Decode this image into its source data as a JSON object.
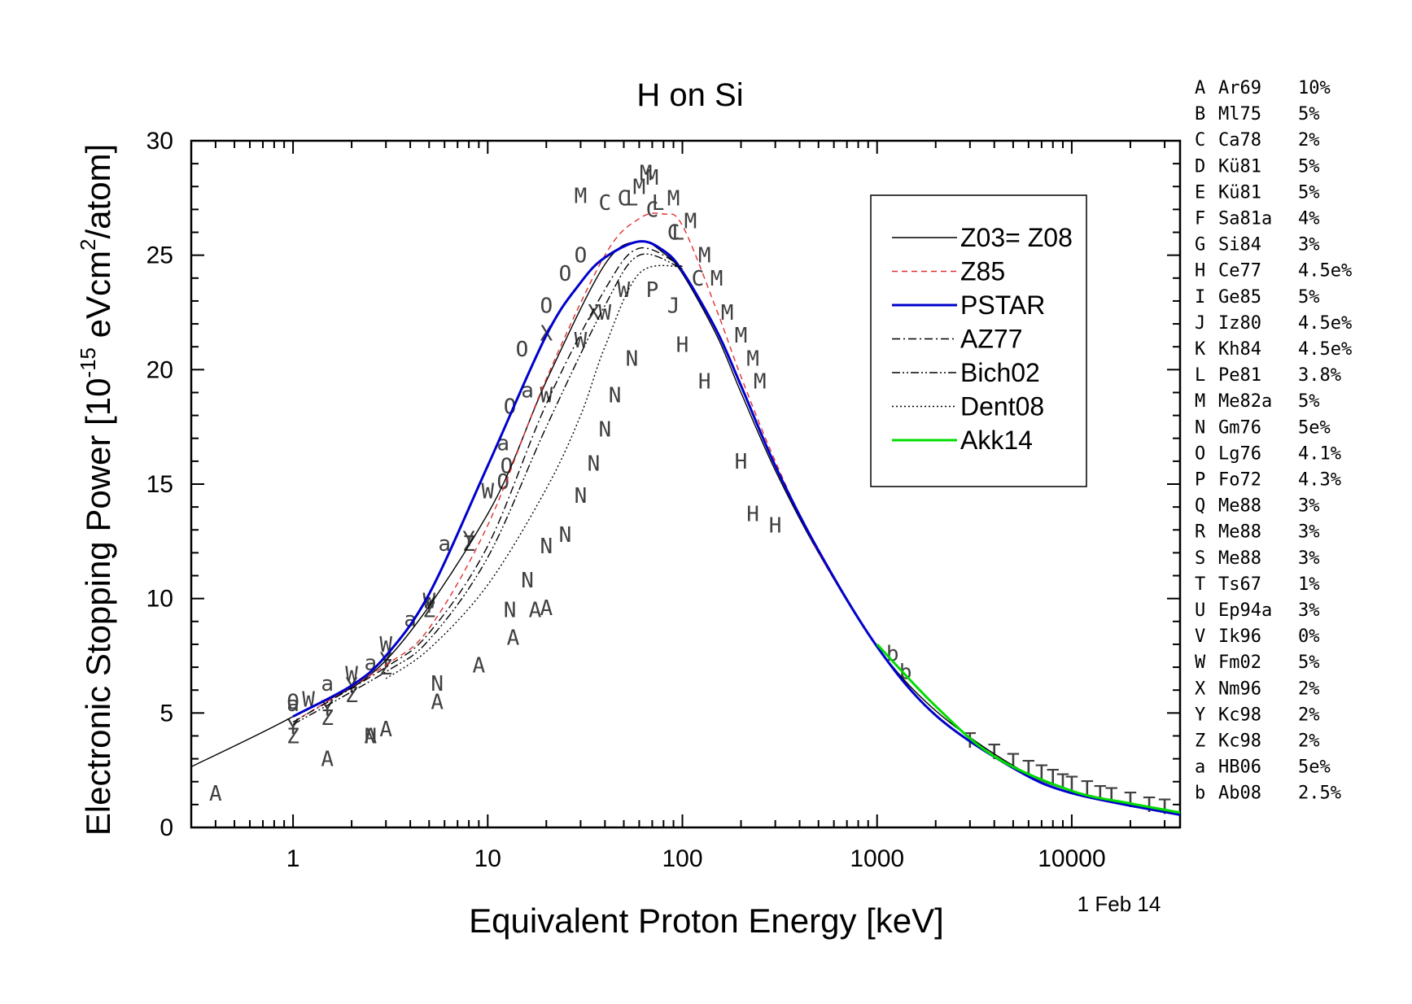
{
  "chart_data": {
    "type": "scatter",
    "title": "H on Si",
    "xlabel": "Equivalent Proton Energy [keV]",
    "ylabel_main": "Electronic Stopping Power [10",
    "ylabel_exp": "-15",
    "ylabel_mid": " eVcm",
    "ylabel_sq": "2",
    "ylabel_end": "/atom]",
    "date_label": "1 Feb 14",
    "x_scale": "log",
    "xlim": [
      0.3,
      36000
    ],
    "ylim": [
      0,
      30
    ],
    "x_ticks": [
      1,
      10,
      100,
      1000,
      10000
    ],
    "x_tick_labels": [
      "1",
      "10",
      "100",
      "1000",
      "10000"
    ],
    "y_ticks": [
      0,
      5,
      10,
      15,
      20,
      25,
      30
    ],
    "y_tick_labels": [
      "0",
      "5",
      "10",
      "15",
      "20",
      "25",
      "30"
    ],
    "legend_position": "top-right",
    "series": [
      {
        "name": "Z03= Z08",
        "color": "#000000",
        "style": "solid",
        "x": [
          0.3,
          1,
          3,
          10,
          20,
          40,
          60,
          80,
          100,
          150,
          200,
          300,
          500,
          1000,
          2000,
          5000,
          10000,
          36000
        ],
        "y": [
          2.65,
          4.85,
          7.3,
          13.7,
          19.5,
          24.6,
          25.6,
          25.1,
          24.2,
          21.5,
          19.0,
          15.6,
          12.0,
          7.9,
          5.1,
          2.7,
          1.6,
          0.6
        ]
      },
      {
        "name": "Z85",
        "color": "#e03030",
        "style": "dashed",
        "x": [
          1,
          3,
          5,
          10,
          20,
          40,
          60,
          80,
          100,
          150,
          200,
          300,
          500,
          1000
        ],
        "y": [
          4.6,
          7.1,
          8.7,
          13.2,
          19.6,
          25.0,
          26.6,
          26.8,
          26.3,
          22.6,
          19.7,
          16.0,
          12.0,
          7.9
        ]
      },
      {
        "name": "PSTAR",
        "color": "#0000cc",
        "style": "solid",
        "x": [
          1,
          2,
          3,
          5,
          10,
          20,
          30,
          40,
          60,
          80,
          100,
          150,
          200,
          300,
          500,
          1000,
          2000,
          5000,
          10000,
          36000
        ],
        "y": [
          4.85,
          6.2,
          7.5,
          10.2,
          15.8,
          21.5,
          23.8,
          24.9,
          25.6,
          25.2,
          24.3,
          21.7,
          19.3,
          15.8,
          12.1,
          7.9,
          4.9,
          2.6,
          1.5,
          0.55
        ]
      },
      {
        "name": "AZ77",
        "color": "#000000",
        "style": "dashdot",
        "x": [
          1,
          3,
          5,
          10,
          20,
          40,
          60,
          100
        ],
        "y": [
          4.6,
          7.0,
          8.5,
          12.3,
          18.5,
          23.5,
          25.3,
          24.5
        ]
      },
      {
        "name": "Bich02",
        "color": "#000000",
        "style": "dashdotdot",
        "x": [
          1,
          3,
          5,
          10,
          20,
          40,
          60,
          100
        ],
        "y": [
          4.5,
          6.8,
          8.2,
          11.8,
          17.5,
          22.8,
          25.0,
          24.4
        ]
      },
      {
        "name": "Dent08",
        "color": "#000000",
        "style": "dotted",
        "x": [
          3,
          5,
          10,
          20,
          30,
          40,
          60,
          100
        ],
        "y": [
          6.5,
          7.8,
          10.6,
          14.8,
          18.0,
          21.0,
          24.2,
          24.5
        ]
      },
      {
        "name": "Akk14",
        "color": "#00dd00",
        "style": "solid",
        "x": [
          1000,
          2000,
          4000,
          10000,
          20000,
          36000
        ],
        "y": [
          8.0,
          5.3,
          3.1,
          1.6,
          1.05,
          0.65
        ]
      }
    ],
    "data_points": [
      {
        "label": "A",
        "x": [
          0.4,
          1.5,
          2.5,
          3.0,
          5.5,
          9.0,
          13.5,
          17.5,
          20.0
        ],
        "y": [
          1.5,
          3.0,
          4.0,
          4.3,
          5.5,
          7.1,
          8.3,
          9.5,
          9.6
        ]
      },
      {
        "label": "N",
        "x": [
          2.5,
          5.5,
          13.0,
          16.0,
          20.0,
          25.0,
          30.0,
          35.0,
          40.0,
          45.0,
          55.0
        ],
        "y": [
          4.0,
          6.3,
          9.5,
          10.8,
          12.3,
          12.8,
          14.5,
          15.9,
          17.4,
          18.9,
          20.5
        ]
      },
      {
        "label": "O",
        "x": [
          1.0,
          12.0,
          12.5,
          13.0,
          15.0,
          20.0,
          25.0,
          30.0
        ],
        "y": [
          5.5,
          15.1,
          15.8,
          18.4,
          20.9,
          22.8,
          24.2,
          25.0
        ]
      },
      {
        "label": "M",
        "x": [
          30,
          60,
          65,
          70,
          90,
          110,
          130,
          150,
          170,
          200,
          230,
          250
        ],
        "y": [
          27.6,
          28.0,
          28.6,
          28.4,
          27.5,
          26.5,
          25.0,
          24.0,
          22.5,
          21.5,
          20.5,
          19.5
        ]
      },
      {
        "label": "C",
        "x": [
          40,
          50,
          70,
          90,
          120
        ],
        "y": [
          27.3,
          27.5,
          27.0,
          26.0,
          24.0
        ]
      },
      {
        "label": "L",
        "x": [
          55,
          75,
          95
        ],
        "y": [
          27.5,
          27.3,
          26.0
        ]
      },
      {
        "label": "H",
        "x": [
          100,
          130,
          200,
          230,
          300
        ],
        "y": [
          21.1,
          19.5,
          16.0,
          13.7,
          13.2
        ]
      },
      {
        "label": "W",
        "x": [
          1.2,
          2.0,
          3.0,
          5.0,
          10.0,
          20.0,
          30.0,
          40.0,
          50.0
        ],
        "y": [
          5.6,
          6.7,
          8.0,
          9.9,
          14.7,
          18.9,
          21.3,
          22.5,
          23.5
        ]
      },
      {
        "label": "Z",
        "x": [
          1.0,
          1.5,
          2.0,
          3.0,
          5.0,
          8.0
        ],
        "y": [
          4.0,
          4.8,
          5.8,
          7.0,
          9.5,
          12.4
        ]
      },
      {
        "label": "Y",
        "x": [
          1.0,
          1.5,
          2.0,
          3.0,
          5.0,
          8.0
        ],
        "y": [
          4.4,
          5.2,
          6.2,
          7.3,
          9.7,
          12.6
        ]
      },
      {
        "label": "a",
        "x": [
          1.0,
          1.5,
          2.5,
          4.0,
          6.0,
          12.0,
          16.0
        ],
        "y": [
          5.4,
          6.3,
          7.2,
          9.1,
          12.4,
          16.8,
          19.1
        ]
      },
      {
        "label": "b",
        "x": [
          1200,
          1400
        ],
        "y": [
          7.6,
          6.8
        ]
      },
      {
        "label": "T",
        "x": [
          3000,
          4000,
          5000,
          6000,
          7000,
          8000,
          9000,
          10000,
          12000,
          14000,
          16000,
          20000,
          25000,
          30000
        ],
        "y": [
          3.8,
          3.3,
          2.9,
          2.6,
          2.4,
          2.2,
          2.0,
          1.9,
          1.7,
          1.5,
          1.4,
          1.2,
          1.0,
          0.9
        ]
      },
      {
        "label": "J",
        "x": [
          90
        ],
        "y": [
          22.8
        ]
      },
      {
        "label": "P",
        "x": [
          70
        ],
        "y": [
          23.5
        ]
      },
      {
        "label": "X",
        "x": [
          20,
          35
        ],
        "y": [
          21.6,
          22.5
        ]
      }
    ],
    "references": [
      {
        "letter": "A",
        "name": "Ar69",
        "err": "10%"
      },
      {
        "letter": "B",
        "name": "Ml75",
        "err": "5%"
      },
      {
        "letter": "C",
        "name": "Ca78",
        "err": "2%"
      },
      {
        "letter": "D",
        "name": "Kü81",
        "err": "5%"
      },
      {
        "letter": "E",
        "name": "Kü81",
        "err": "5%"
      },
      {
        "letter": "F",
        "name": "Sa81a",
        "err": "4%"
      },
      {
        "letter": "G",
        "name": "Si84",
        "err": "3%"
      },
      {
        "letter": "H",
        "name": "Ce77",
        "err": "4.5e%"
      },
      {
        "letter": "I",
        "name": "Ge85",
        "err": "5%"
      },
      {
        "letter": "J",
        "name": "Iz80",
        "err": "4.5e%"
      },
      {
        "letter": "K",
        "name": "Kh84",
        "err": "4.5e%"
      },
      {
        "letter": "L",
        "name": "Pe81",
        "err": "3.8%"
      },
      {
        "letter": "M",
        "name": "Me82a",
        "err": "5%"
      },
      {
        "letter": "N",
        "name": "Gm76",
        "err": "5e%"
      },
      {
        "letter": "O",
        "name": "Lg76",
        "err": "4.1%"
      },
      {
        "letter": "P",
        "name": "Fo72",
        "err": "4.3%"
      },
      {
        "letter": "Q",
        "name": "Me88",
        "err": "3%"
      },
      {
        "letter": "R",
        "name": "Me88",
        "err": "3%"
      },
      {
        "letter": "S",
        "name": "Me88",
        "err": "3%"
      },
      {
        "letter": "T",
        "name": "Ts67",
        "err": "1%"
      },
      {
        "letter": "U",
        "name": "Ep94a",
        "err": "3%"
      },
      {
        "letter": "V",
        "name": "Ik96",
        "err": "0%"
      },
      {
        "letter": "W",
        "name": "Fm02",
        "err": "5%"
      },
      {
        "letter": "X",
        "name": "Nm96",
        "err": "2%"
      },
      {
        "letter": "Y",
        "name": "Kc98",
        "err": "2%"
      },
      {
        "letter": "Z",
        "name": "Kc98",
        "err": "2%"
      },
      {
        "letter": "a",
        "name": "HB06",
        "err": "5e%"
      },
      {
        "letter": "b",
        "name": "Ab08",
        "err": "2.5%"
      }
    ]
  }
}
